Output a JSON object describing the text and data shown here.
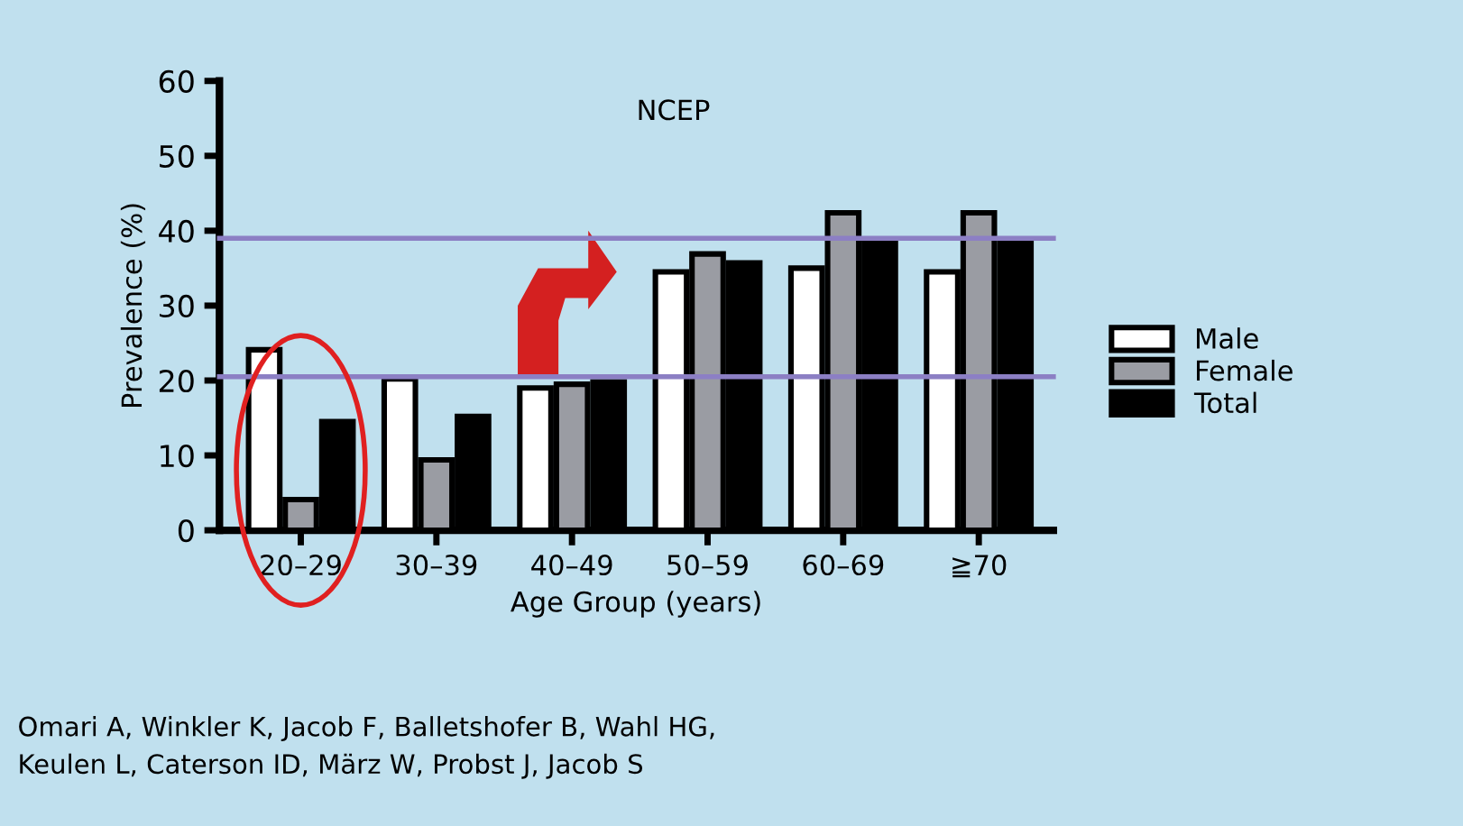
{
  "chart_data": {
    "type": "bar",
    "title": "NCEP",
    "xlabel": "Age Group (years)",
    "ylabel": "Prevalence (%)",
    "categories": [
      "20–29",
      "30–39",
      "40–49",
      "50–59",
      "60–69",
      "≧70"
    ],
    "series": [
      {
        "name": "Male",
        "color": "#ffffff",
        "values": [
          24.1,
          20.2,
          19.0,
          34.5,
          35.0,
          34.5
        ]
      },
      {
        "name": "Female",
        "color": "#9a9ca3",
        "values": [
          4.1,
          9.4,
          19.5,
          36.9,
          42.4,
          42.4
        ]
      },
      {
        "name": "Total",
        "color": "#000000",
        "values": [
          14.5,
          15.2,
          19.8,
          35.7,
          38.6,
          38.8
        ]
      }
    ],
    "ylim": [
      0,
      60
    ],
    "yticks": [
      0,
      10,
      20,
      30,
      40,
      50,
      60
    ],
    "grid": false,
    "legend": "right",
    "ref_lines": [
      {
        "axis": "y",
        "value": 39.0,
        "color": "#8c7fc4"
      },
      {
        "axis": "y",
        "value": 20.5,
        "color": "#8c7fc4"
      }
    ],
    "annotations": [
      "Omari A, Winkler K, Jacob F, Balletshofer B, Wahl HG,\nKeulen L, Caterson ID, März W, Probst J, Jacob S"
    ]
  }
}
